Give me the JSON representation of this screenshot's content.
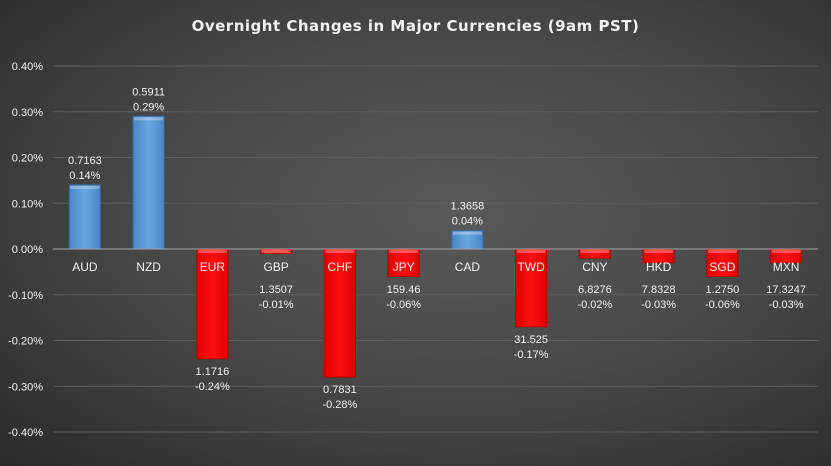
{
  "chart_data": {
    "type": "bar",
    "title": "Overnight Changes in Major Currencies (9am PST)",
    "categories": [
      "AUD",
      "NZD",
      "EUR",
      "GBP",
      "CHF",
      "JPY",
      "CAD",
      "TWD",
      "CNY",
      "HKD",
      "SGD",
      "MXN"
    ],
    "values": [
      0.14,
      0.29,
      -0.24,
      -0.01,
      -0.28,
      -0.06,
      0.04,
      -0.17,
      -0.02,
      -0.03,
      -0.06,
      -0.03
    ],
    "value_labels": [
      "0.14%",
      "0.29%",
      "-0.24%",
      "-0.01%",
      "-0.28%",
      "-0.06%",
      "0.04%",
      "-0.17%",
      "-0.02%",
      "-0.03%",
      "-0.06%",
      "-0.03%"
    ],
    "rates": [
      "0.7163",
      "0.5911",
      "1.1716",
      "1.3507",
      "0.7831",
      "159.46",
      "1.3658",
      "31.525",
      "6.8276",
      "7.8328",
      "1.2750",
      "17.3247"
    ],
    "ylim": [
      -0.4,
      0.4
    ],
    "yticks": [
      "0.40%",
      "0.30%",
      "0.20%",
      "0.10%",
      "0.00%",
      "-0.10%",
      "-0.20%",
      "-0.30%",
      "-0.40%"
    ],
    "ytick_values": [
      0.4,
      0.3,
      0.2,
      0.1,
      0,
      -0.1,
      -0.2,
      -0.3,
      -0.4
    ],
    "grid": true,
    "legend": "none",
    "colors": {
      "positive": "#5b9bd5",
      "negative": "#ff0000",
      "background": "#4a4a4a",
      "text": "#f2f2f2",
      "grid": "#5e5e5e"
    }
  }
}
